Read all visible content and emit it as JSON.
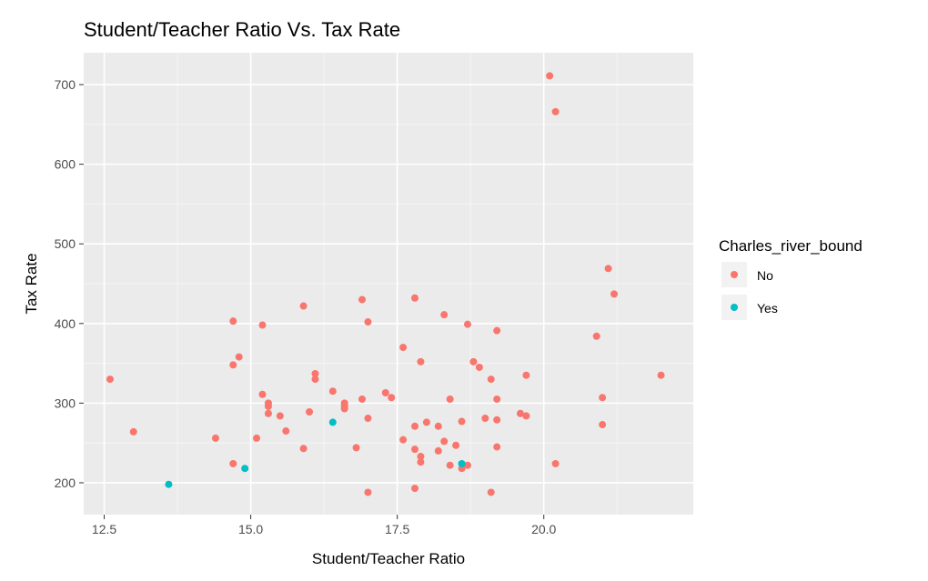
{
  "chart_data": {
    "type": "scatter",
    "title": "Student/Teacher Ratio Vs. Tax Rate",
    "xlabel": "Student/Teacher Ratio",
    "ylabel": "Tax Rate",
    "xlim": [
      12.15,
      22.55
    ],
    "ylim": [
      160,
      740
    ],
    "x_ticks": [
      12.5,
      15.0,
      17.5,
      20.0
    ],
    "x_tick_labels": [
      "12.5",
      "15.0",
      "17.5",
      "20.0"
    ],
    "y_ticks": [
      200,
      300,
      400,
      500,
      600,
      700
    ],
    "y_tick_labels": [
      "200",
      "300",
      "400",
      "500",
      "600",
      "700"
    ],
    "grid": true,
    "legend": {
      "title": "Charles_river_bound",
      "position": "right",
      "entries": [
        {
          "label": "No",
          "color": "#F8766D"
        },
        {
          "label": "Yes",
          "color": "#00BFC4"
        }
      ]
    },
    "series": [
      {
        "name": "No",
        "color": "#F8766D",
        "points": [
          [
            12.6,
            330
          ],
          [
            13.0,
            264
          ],
          [
            14.4,
            256
          ],
          [
            14.7,
            224
          ],
          [
            14.7,
            348
          ],
          [
            14.7,
            403
          ],
          [
            14.8,
            358
          ],
          [
            15.1,
            256
          ],
          [
            15.2,
            311
          ],
          [
            15.2,
            398
          ],
          [
            15.3,
            287
          ],
          [
            15.3,
            296
          ],
          [
            15.3,
            300
          ],
          [
            15.5,
            284
          ],
          [
            15.6,
            265
          ],
          [
            15.9,
            243
          ],
          [
            15.9,
            422
          ],
          [
            16.0,
            289
          ],
          [
            16.1,
            330
          ],
          [
            16.1,
            337
          ],
          [
            16.4,
            315
          ],
          [
            16.6,
            293
          ],
          [
            16.6,
            296
          ],
          [
            16.6,
            300
          ],
          [
            16.8,
            244
          ],
          [
            16.9,
            305
          ],
          [
            16.9,
            430
          ],
          [
            17.0,
            188
          ],
          [
            17.0,
            281
          ],
          [
            17.0,
            402
          ],
          [
            17.3,
            313
          ],
          [
            17.4,
            307
          ],
          [
            17.6,
            370
          ],
          [
            17.6,
            254
          ],
          [
            17.8,
            432
          ],
          [
            17.8,
            271
          ],
          [
            17.8,
            242
          ],
          [
            17.8,
            193
          ],
          [
            17.9,
            233
          ],
          [
            17.9,
            226
          ],
          [
            17.9,
            352
          ],
          [
            18.0,
            276
          ],
          [
            18.2,
            271
          ],
          [
            18.2,
            240
          ],
          [
            18.3,
            252
          ],
          [
            18.3,
            411
          ],
          [
            18.4,
            305
          ],
          [
            18.4,
            222
          ],
          [
            18.5,
            247
          ],
          [
            18.6,
            277
          ],
          [
            18.6,
            218
          ],
          [
            18.7,
            399
          ],
          [
            18.7,
            222
          ],
          [
            18.8,
            352
          ],
          [
            18.9,
            345
          ],
          [
            19.0,
            281
          ],
          [
            19.1,
            330
          ],
          [
            19.1,
            188
          ],
          [
            19.2,
            391
          ],
          [
            19.2,
            305
          ],
          [
            19.2,
            279
          ],
          [
            19.2,
            245
          ],
          [
            19.6,
            287
          ],
          [
            19.7,
            284
          ],
          [
            19.7,
            335
          ],
          [
            20.1,
            711
          ],
          [
            20.2,
            666
          ],
          [
            20.2,
            224
          ],
          [
            20.9,
            384
          ],
          [
            21.0,
            307
          ],
          [
            21.0,
            273
          ],
          [
            21.1,
            469
          ],
          [
            21.2,
            437
          ],
          [
            22.0,
            335
          ]
        ]
      },
      {
        "name": "Yes",
        "color": "#00BFC4",
        "points": [
          [
            13.6,
            198
          ],
          [
            14.9,
            218
          ],
          [
            16.4,
            276
          ],
          [
            18.6,
            224
          ]
        ]
      }
    ]
  }
}
